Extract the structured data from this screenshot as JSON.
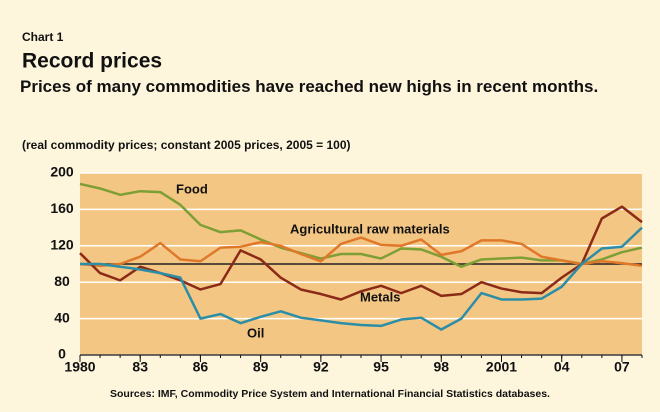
{
  "chart_data": {
    "type": "line",
    "kicker": "Chart 1",
    "title": "Record prices",
    "subtitle": "Prices of many commodities have reached new highs in recent months.",
    "note": "(real commodity prices; constant 2005 prices, 2005 = 100)",
    "source": "Sources: IMF, Commodity Price System and International Financial Statistics databases.",
    "x": [
      1980,
      1981,
      1982,
      1983,
      1984,
      1985,
      1986,
      1987,
      1988,
      1989,
      1990,
      1991,
      1992,
      1993,
      1994,
      1995,
      1996,
      1997,
      1998,
      1999,
      2000,
      2001,
      2002,
      2003,
      2004,
      2005,
      2006,
      2007,
      2008
    ],
    "series": [
      {
        "name": "Food",
        "color": "#7d9f35",
        "values": [
          188,
          183,
          176,
          180,
          179,
          165,
          143,
          135,
          137,
          127,
          118,
          112,
          106,
          111,
          111,
          106,
          117,
          116,
          108,
          97,
          105,
          106,
          107,
          104,
          104,
          100,
          105,
          113,
          118
        ]
      },
      {
        "name": "Agricultural raw materials",
        "color": "#e0782a",
        "values": [
          100,
          98,
          100,
          108,
          123,
          105,
          103,
          118,
          119,
          124,
          120,
          111,
          103,
          122,
          129,
          121,
          120,
          127,
          110,
          114,
          126,
          126,
          122,
          108,
          104,
          100,
          103,
          101,
          98
        ]
      },
      {
        "name": "Metals",
        "color": "#8a2a17",
        "values": [
          112,
          90,
          82,
          97,
          90,
          82,
          72,
          78,
          115,
          105,
          85,
          72,
          67,
          61,
          70,
          76,
          68,
          76,
          65,
          67,
          80,
          73,
          69,
          68,
          85,
          100,
          150,
          163,
          146
        ]
      },
      {
        "name": "Oil",
        "color": "#2b8ea6",
        "values": [
          100,
          100,
          97,
          94,
          90,
          85,
          40,
          45,
          35,
          42,
          48,
          41,
          38,
          35,
          33,
          32,
          39,
          41,
          28,
          40,
          68,
          61,
          61,
          62,
          75,
          100,
          117,
          119,
          140
        ]
      }
    ],
    "reference_line": 100,
    "xlim": [
      1980,
      2008
    ],
    "xticks": [
      1980,
      {
        "value": 1983,
        "label": "83"
      },
      {
        "value": 1986,
        "label": "86"
      },
      {
        "value": 1989,
        "label": "89"
      },
      {
        "value": 1992,
        "label": "92"
      },
      {
        "value": 1995,
        "label": "95"
      },
      {
        "value": 1998,
        "label": "98"
      },
      2001,
      {
        "value": 2004,
        "label": "04"
      },
      {
        "value": 2007,
        "label": "07"
      }
    ],
    "ylim": [
      0,
      200
    ],
    "yticks": [
      0,
      40,
      80,
      120,
      160,
      200
    ],
    "grid": true
  }
}
